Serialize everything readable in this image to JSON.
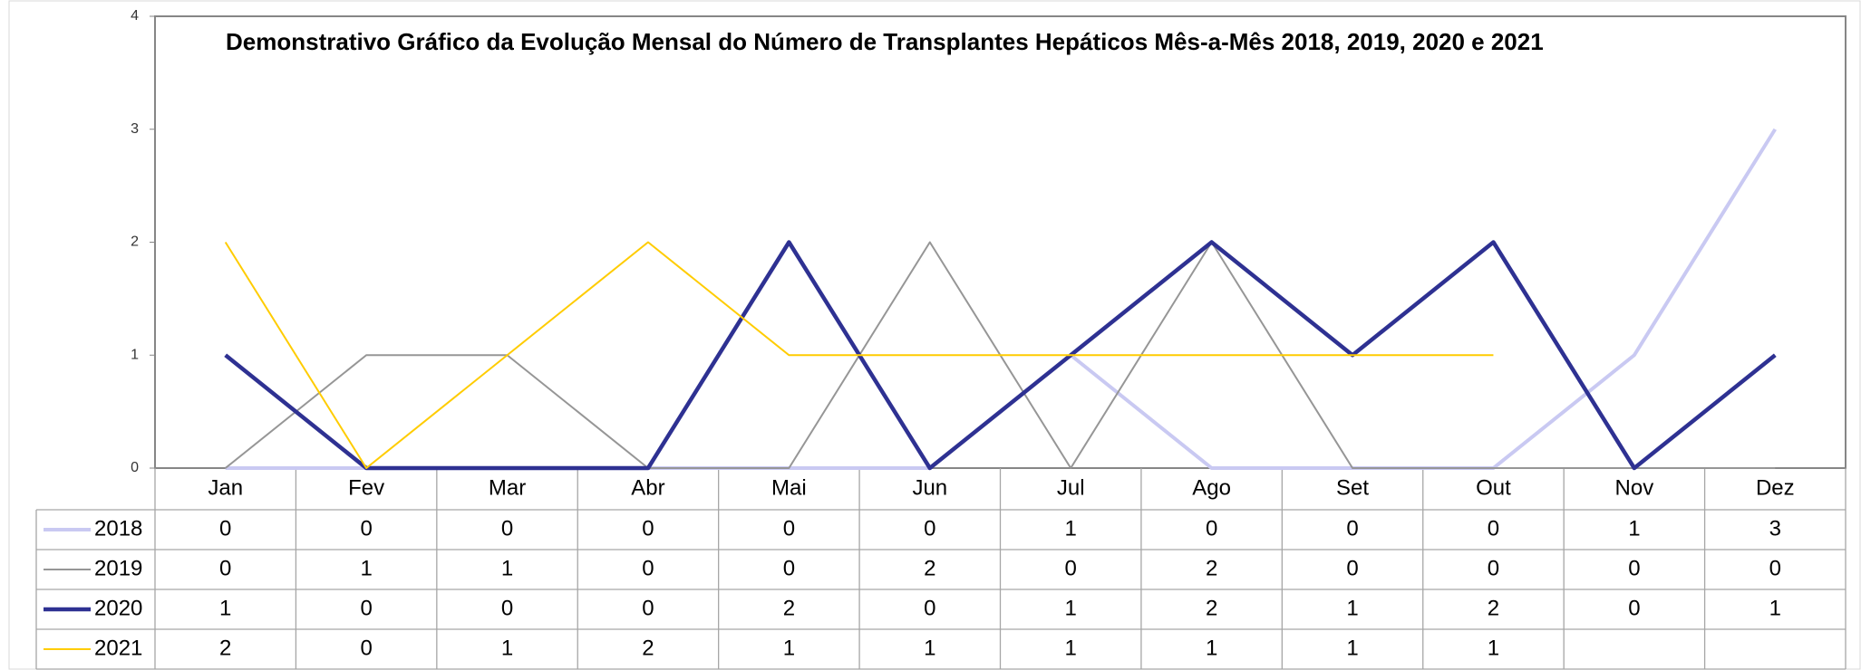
{
  "chart_data": {
    "type": "line",
    "title": "Demonstrativo Gráfico da Evolução Mensal do Número de Transplantes Hepáticos Mês-a-Mês 2018, 2019, 2020 e 2021",
    "categories": [
      "Jan",
      "Fev",
      "Mar",
      "Abr",
      "Mai",
      "Jun",
      "Jul",
      "Ago",
      "Set",
      "Out",
      "Nov",
      "Dez"
    ],
    "series": [
      {
        "name": "2018",
        "color": "#c9c9f2",
        "values": [
          0,
          0,
          0,
          0,
          0,
          0,
          1,
          0,
          0,
          0,
          1,
          3
        ]
      },
      {
        "name": "2019",
        "color": "#969696",
        "values": [
          0,
          1,
          1,
          0,
          0,
          2,
          0,
          2,
          0,
          0,
          0,
          0
        ]
      },
      {
        "name": "2020",
        "color": "#2e3192",
        "values": [
          1,
          0,
          0,
          0,
          2,
          0,
          1,
          2,
          1,
          2,
          0,
          1
        ]
      },
      {
        "name": "2021",
        "color": "#ffcc00",
        "values": [
          2,
          0,
          1,
          2,
          1,
          1,
          1,
          1,
          1,
          1,
          null,
          null
        ]
      }
    ],
    "ylim": [
      0,
      4
    ],
    "yticks": [
      0,
      1,
      2,
      3,
      4
    ]
  }
}
